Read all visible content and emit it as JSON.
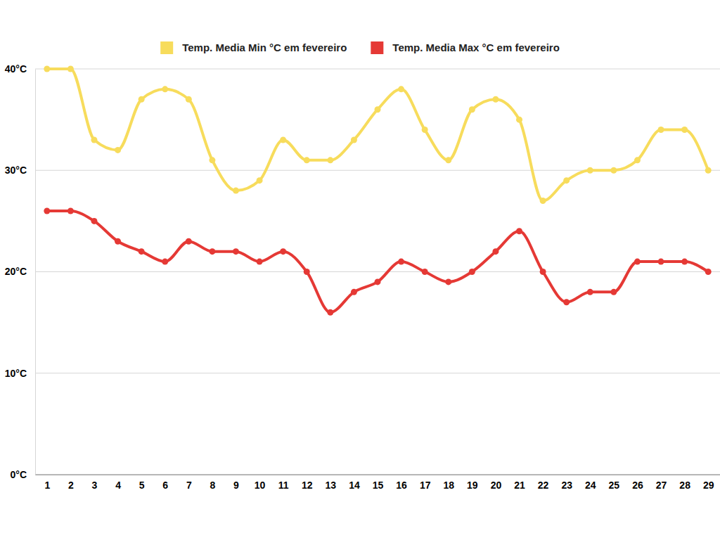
{
  "chart_data": {
    "type": "line",
    "categories": [
      "1",
      "2",
      "3",
      "4",
      "5",
      "6",
      "7",
      "8",
      "9",
      "10",
      "11",
      "12",
      "13",
      "14",
      "15",
      "16",
      "17",
      "18",
      "19",
      "20",
      "21",
      "22",
      "23",
      "24",
      "25",
      "26",
      "27",
      "28",
      "29"
    ],
    "series": [
      {
        "name": "Temp. Media Min °C em fevereiro",
        "color": "#f7dc5c",
        "marker": "circle",
        "values": [
          40,
          40,
          33,
          32,
          37,
          38,
          37,
          31,
          28,
          29,
          33,
          31,
          31,
          33,
          36,
          38,
          34,
          31,
          36,
          37,
          35,
          27,
          29,
          30,
          30,
          31,
          34,
          34,
          30
        ]
      },
      {
        "name": "Temp. Media Max °C em fevereiro",
        "color": "#e53935",
        "marker": "circle",
        "values": [
          26,
          26,
          25,
          23,
          22,
          21,
          23,
          22,
          22,
          21,
          22,
          20,
          16,
          18,
          19,
          21,
          20,
          19,
          20,
          22,
          24,
          20,
          17,
          18,
          18,
          21,
          21,
          21,
          20
        ]
      }
    ],
    "ylim": [
      0,
      40
    ],
    "yticks": [
      {
        "value": 0,
        "label": "0°C"
      },
      {
        "value": 10,
        "label": "10°C"
      },
      {
        "value": 20,
        "label": "20°C"
      },
      {
        "value": 30,
        "label": "30°C"
      },
      {
        "value": 40,
        "label": "40°C"
      }
    ],
    "grid": true,
    "legend": "top"
  }
}
